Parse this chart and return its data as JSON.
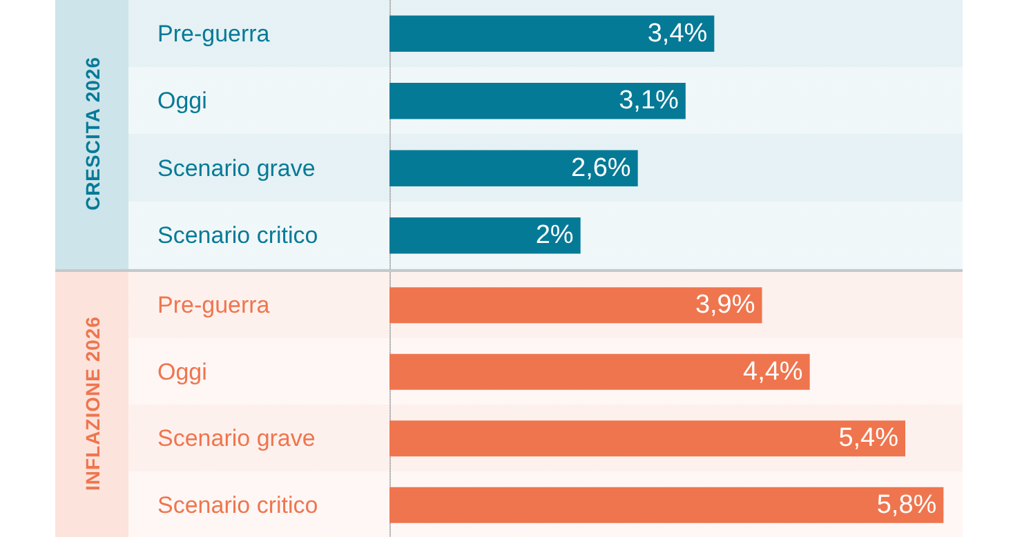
{
  "chart_data": [
    {
      "type": "bar",
      "orientation": "horizontal",
      "title": "CRESCITA 2026",
      "categories": [
        "Pre-guerra",
        "Oggi",
        "Scenario grave",
        "Scenario critico"
      ],
      "values": [
        3.4,
        3.1,
        2.6,
        2
      ],
      "value_labels": [
        "3,4%",
        "3,1%",
        "2,6%",
        "2%"
      ],
      "color": "#057a97",
      "xlim": [
        0,
        6
      ],
      "tick_labels": "y"
    },
    {
      "type": "bar",
      "orientation": "horizontal",
      "title": "INFLAZIONE 2026",
      "categories": [
        "Pre-guerra",
        "Oggi",
        "Scenario grave",
        "Scenario critico"
      ],
      "values": [
        3.9,
        4.4,
        5.4,
        5.8
      ],
      "value_labels": [
        "3,9%",
        "4,4%",
        "5,4%",
        "5,8%"
      ],
      "color": "#ef754e",
      "xlim": [
        0,
        6
      ],
      "tick_labels": "y"
    }
  ]
}
